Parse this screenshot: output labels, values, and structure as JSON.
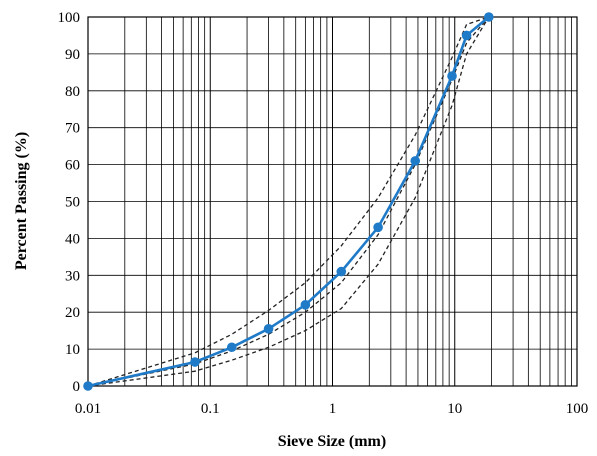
{
  "chart_data": {
    "type": "line",
    "title": "",
    "xlabel": "Sieve Size (mm)",
    "ylabel": "Percent Passing (%)",
    "xscale": "log",
    "xlim": [
      0.01,
      100
    ],
    "ylim": [
      0,
      100
    ],
    "grid": true,
    "legend": "none",
    "x_ticks": [
      "0.01",
      "0.1",
      "1",
      "10",
      "100"
    ],
    "y_ticks": [
      "0",
      "10",
      "20",
      "30",
      "40",
      "50",
      "60",
      "70",
      "80",
      "90",
      "100"
    ],
    "colors": {
      "main": "#1f7bc8",
      "envelope": "#222222",
      "grid": "#000000"
    },
    "series": [
      {
        "style": "solid-markers",
        "x": [
          0.01,
          0.075,
          0.15,
          0.3,
          0.6,
          1.18,
          2.36,
          4.75,
          9.5,
          12.5,
          19
        ],
        "y": [
          0,
          6.5,
          10.5,
          15.5,
          22,
          31,
          43,
          61,
          84,
          95,
          100
        ]
      },
      {
        "style": "dashed",
        "x": [
          0.01,
          0.075,
          0.15,
          0.3,
          0.6,
          1.18,
          2.36,
          4.75,
          9.5,
          12.5,
          19
        ],
        "y": [
          0,
          9,
          14,
          20.5,
          28,
          38,
          51,
          68,
          89,
          98,
          100
        ]
      },
      {
        "style": "dashed",
        "x": [
          0.01,
          0.075,
          0.15,
          0.3,
          0.6,
          1.18,
          2.36,
          4.75,
          9.5,
          12.5,
          19
        ],
        "y": [
          0,
          4,
          7,
          10.5,
          15,
          21,
          33,
          51,
          76,
          90,
          100
        ]
      },
      {
        "style": "dashed",
        "x": [
          0.01,
          0.075,
          0.15,
          0.3,
          0.6,
          1.18,
          2.36,
          4.75,
          9.5,
          12.5,
          19
        ],
        "y": [
          0,
          6,
          9.5,
          14,
          20,
          28,
          41,
          60,
          83,
          93,
          100
        ]
      }
    ]
  }
}
